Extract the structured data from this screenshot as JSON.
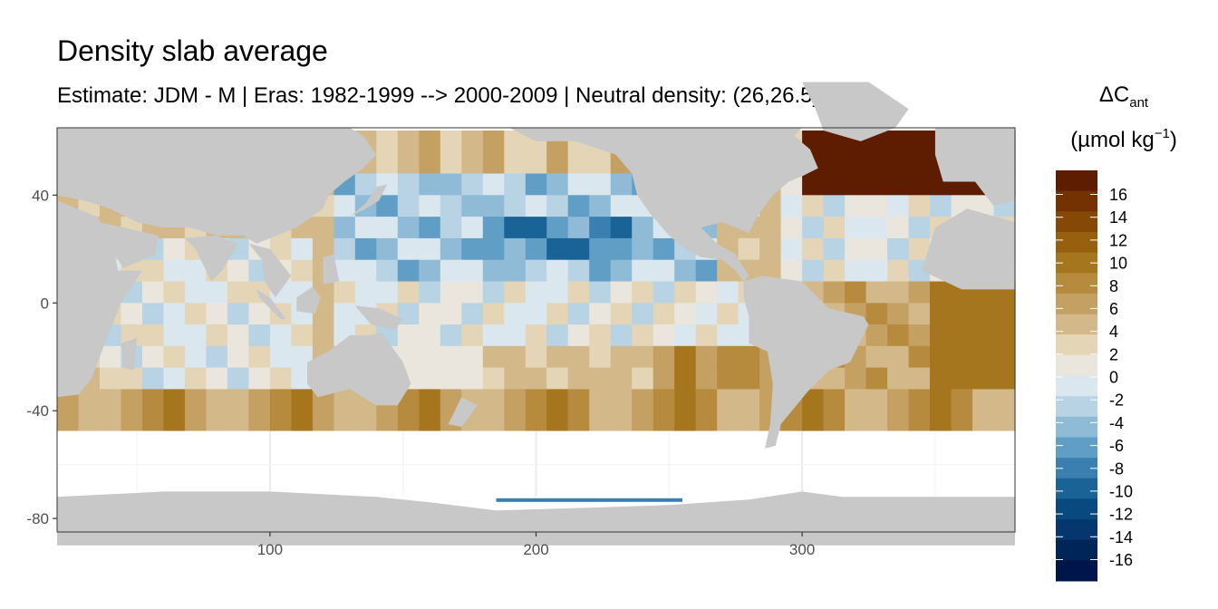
{
  "title": "Density slab average",
  "subtitle": "Estimate: JDM - M | Eras: 1982-1999 --> 2000-2009 | Neutral density: (26,26.5]",
  "chart_data": {
    "type": "heatmap",
    "x_ticks": [
      100,
      200,
      300
    ],
    "y_ticks": [
      40,
      0,
      -40,
      -80
    ],
    "xlim": [
      20,
      380
    ],
    "ylim": [
      -85,
      65
    ],
    "grid": true,
    "legend_placement": "right",
    "legend": {
      "title_symbol": "ΔC",
      "title_subscript": "ant",
      "units_prefix": "(µmol kg",
      "units_superscript": "−1",
      "units_suffix": ")",
      "tick_labels": [
        "16",
        "14",
        "12",
        "10",
        "8",
        "6",
        "4",
        "2",
        "0",
        "-2",
        "-4",
        "-6",
        "-8",
        "-10",
        "-12",
        "-14",
        "-16"
      ],
      "colors": [
        "#5e1c01",
        "#743102",
        "#864807",
        "#96600f",
        "#a6761f",
        "#b68b3e",
        "#c4a063",
        "#d3b98a",
        "#e4d5b7",
        "#ebe6dd",
        "#dbe7ee",
        "#b7d3e4",
        "#8fbbd6",
        "#609ec6",
        "#3b7fb0",
        "#1a6396",
        "#084a80",
        "#05366e",
        "#002659",
        "#00154a"
      ]
    },
    "colors": {
      "land": "#c8c8c8",
      "no_data": "#ffffff",
      "panel_border": "#333333",
      "grid": "#ebebeb"
    }
  }
}
